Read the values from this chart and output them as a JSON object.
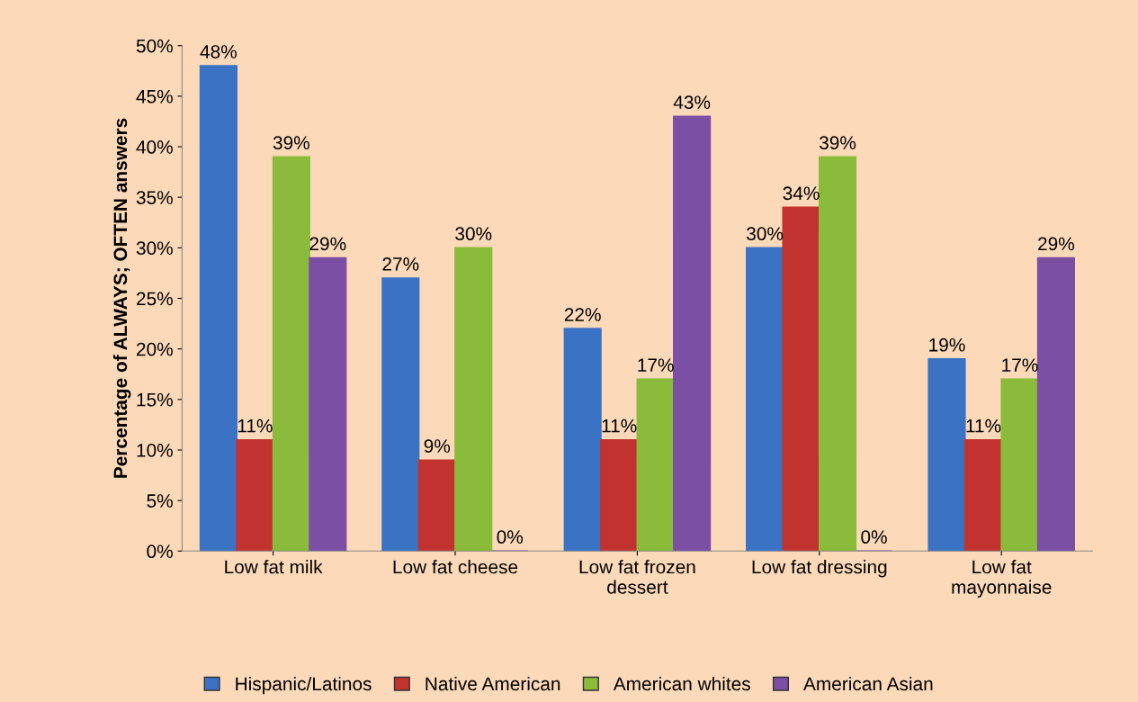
{
  "chart_data": {
    "type": "bar",
    "ylabel": "Percentage of ALWAYS; OFTEN answers",
    "categories": [
      "Low fat milk",
      "Low fat cheese",
      "Low fat frozen\ndessert",
      "Low fat dressing",
      "Low fat\nmayonnaise"
    ],
    "series": [
      {
        "name": "Hispanic/Latinos",
        "color": "#3a72c4",
        "values": [
          48,
          27,
          22,
          30,
          19
        ],
        "value_labels": [
          "48%",
          "27%",
          "22%",
          "30%",
          "19%"
        ]
      },
      {
        "name": "Native American",
        "color": "#c23330",
        "values": [
          11,
          9,
          11,
          34,
          11
        ],
        "value_labels": [
          "11%",
          "9%",
          "11%",
          "34%",
          "11%"
        ]
      },
      {
        "name": "American whites",
        "color": "#8bbb3a",
        "values": [
          39,
          30,
          17,
          39,
          17
        ],
        "value_labels": [
          "39%",
          "30%",
          "17%",
          "39%",
          "17%"
        ]
      },
      {
        "name": "American Asian",
        "color": "#7b4fa3",
        "values": [
          29,
          0,
          43,
          0,
          29
        ],
        "value_labels": [
          "29%",
          "0%",
          "43%",
          "0%",
          "29%"
        ]
      }
    ],
    "ylim": [
      0,
      50
    ],
    "yticks": [
      {
        "value": 0,
        "label": "0%"
      },
      {
        "value": 5,
        "label": "5%"
      },
      {
        "value": 10,
        "label": "10%"
      },
      {
        "value": 15,
        "label": "15%"
      },
      {
        "value": 20,
        "label": "20%"
      },
      {
        "value": 25,
        "label": "25%"
      },
      {
        "value": 30,
        "label": "30%"
      },
      {
        "value": 35,
        "label": "35%"
      },
      {
        "value": 40,
        "label": "40%"
      },
      {
        "value": 45,
        "label": "45%"
      },
      {
        "value": 50,
        "label": "50%"
      }
    ],
    "grid": false,
    "legend": "bottom"
  }
}
